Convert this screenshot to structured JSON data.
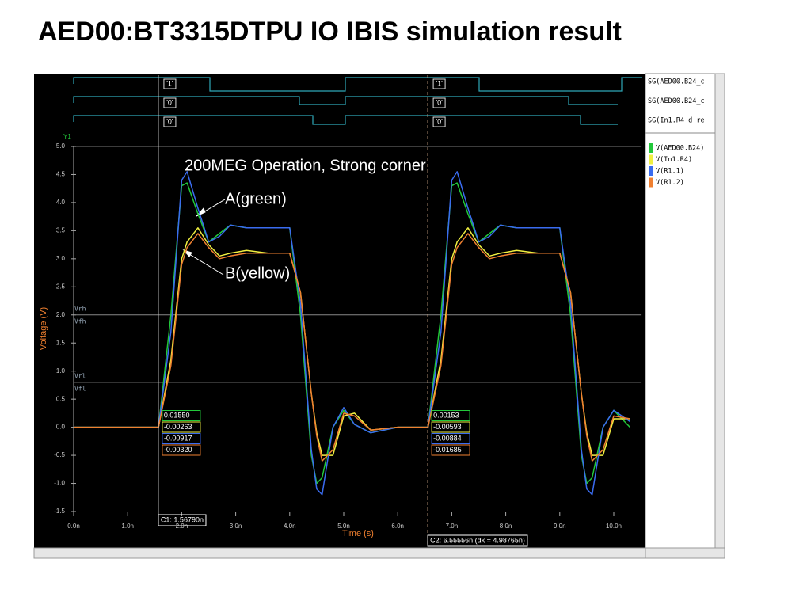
{
  "chart_data": {
    "type": "line",
    "title": "AED00:BT3315DTPU IO IBIS simulation result",
    "xlabel": "Time (s)",
    "ylabel": "Voltage (V)",
    "axis_name": "Y1",
    "annotations": [
      "200MEG Operation, Strong corner",
      "A(green)",
      "B(yellow)"
    ],
    "xlim": [
      0,
      10.5
    ],
    "ylim": [
      -1.5,
      5.0
    ],
    "xticks": [
      {
        "value": 0,
        "label": "0.0n"
      },
      {
        "value": 1,
        "label": "1.0n"
      },
      {
        "value": 2,
        "label": "2.0n"
      },
      {
        "value": 3,
        "label": "3.0n"
      },
      {
        "value": 4,
        "label": "4.0n"
      },
      {
        "value": 5,
        "label": "5.0n"
      },
      {
        "value": 6,
        "label": "6.0n"
      },
      {
        "value": 7,
        "label": "7.0n"
      },
      {
        "value": 8,
        "label": "8.0n"
      },
      {
        "value": 9,
        "label": "9.0n"
      },
      {
        "value": 10,
        "label": "10.0n"
      }
    ],
    "yticks": [
      {
        "value": 5,
        "label": "5.0"
      },
      4.5,
      {
        "value": 4,
        "label": "4.0"
      },
      3.5,
      {
        "value": 3,
        "label": "3.0"
      },
      2.5,
      {
        "value": 2,
        "label": "2.0"
      },
      1.5,
      {
        "value": 1,
        "label": "1.0"
      },
      0.5,
      {
        "value": 0,
        "label": "0.0"
      },
      -0.5,
      {
        "value": -1,
        "label": "-1.0"
      },
      -1.5
    ],
    "thresholds": [
      {
        "value": 2.0,
        "labels": [
          "Vrh",
          "Vfh"
        ]
      },
      {
        "value": 0.8,
        "labels": [
          "Vrl",
          "Vfl"
        ]
      }
    ],
    "cursors": [
      {
        "value": 1.5679,
        "label": "C1: 1.56790n",
        "readouts": [
          "0.01550",
          "-0.00263",
          "-0.00917",
          "-0.00320"
        ],
        "digital": [
          "'1'",
          "'0'",
          "'0'"
        ]
      },
      {
        "value": 6.55556,
        "label": "C2: 6.55556n (dx = 4.98765n)",
        "readouts": [
          "0.00153",
          "-0.00593",
          "-0.00884",
          "-0.01685"
        ],
        "digital": [
          "'1'",
          "'0'",
          "'0'"
        ]
      }
    ],
    "digital_signals": [
      "SG(AED00.B24_c",
      "SG(AED00.B24_c",
      "SG(In1.R4_d_re"
    ],
    "x": [
      0,
      1.0,
      1.57,
      1.8,
      2.0,
      2.1,
      2.3,
      2.5,
      2.7,
      2.9,
      3.2,
      3.6,
      4.0,
      4.2,
      4.4,
      4.5,
      4.6,
      4.8,
      5.0,
      5.2,
      5.5,
      6.0,
      6.56,
      6.8,
      7.0,
      7.1,
      7.3,
      7.5,
      7.7,
      7.9,
      8.2,
      8.6,
      9.0,
      9.2,
      9.4,
      9.5,
      9.6,
      9.8,
      10.0,
      10.3
    ],
    "series": [
      {
        "name": "V(AED00.B24)",
        "color": "#22c83a",
        "values": [
          0,
          0,
          0,
          2.0,
          4.3,
          4.35,
          3.8,
          3.3,
          3.45,
          3.6,
          3.55,
          3.55,
          3.55,
          2.0,
          -0.5,
          -1.0,
          -0.9,
          0.0,
          0.3,
          0.05,
          -0.1,
          0,
          0,
          2.0,
          4.3,
          4.35,
          3.8,
          3.3,
          3.45,
          3.6,
          3.55,
          3.55,
          3.55,
          2.0,
          -0.5,
          -1.0,
          -0.9,
          0.0,
          0.3,
          0.0
        ]
      },
      {
        "name": "V(In1.R4)",
        "color": "#f0f040",
        "values": [
          0,
          0,
          0,
          1.2,
          3.0,
          3.3,
          3.55,
          3.25,
          3.05,
          3.1,
          3.15,
          3.1,
          3.1,
          2.4,
          0.6,
          -0.1,
          -0.5,
          -0.5,
          0.2,
          0.25,
          -0.05,
          0,
          0,
          1.2,
          3.0,
          3.3,
          3.55,
          3.25,
          3.05,
          3.1,
          3.15,
          3.1,
          3.1,
          2.4,
          0.6,
          -0.1,
          -0.5,
          -0.5,
          0.15,
          0.15
        ]
      },
      {
        "name": "V(R1.1)",
        "color": "#3a6cf0",
        "values": [
          0,
          0,
          0,
          1.7,
          4.4,
          4.55,
          3.9,
          3.3,
          3.4,
          3.6,
          3.55,
          3.55,
          3.55,
          2.2,
          -0.4,
          -1.1,
          -1.2,
          0.0,
          0.35,
          0.05,
          -0.1,
          0,
          0,
          1.7,
          4.4,
          4.55,
          3.9,
          3.3,
          3.4,
          3.6,
          3.55,
          3.55,
          3.55,
          2.2,
          -0.4,
          -1.1,
          -1.2,
          0.0,
          0.3,
          0.1
        ]
      },
      {
        "name": "V(R1.2)",
        "color": "#f08030",
        "values": [
          0,
          0,
          0,
          1.1,
          2.9,
          3.2,
          3.45,
          3.2,
          3.0,
          3.05,
          3.1,
          3.1,
          3.1,
          2.4,
          0.6,
          -0.15,
          -0.6,
          -0.4,
          0.25,
          0.2,
          -0.05,
          0,
          0,
          1.1,
          2.9,
          3.2,
          3.45,
          3.2,
          3.0,
          3.05,
          3.1,
          3.1,
          3.1,
          2.4,
          0.6,
          -0.15,
          -0.6,
          -0.4,
          0.2,
          0.15
        ]
      }
    ]
  }
}
